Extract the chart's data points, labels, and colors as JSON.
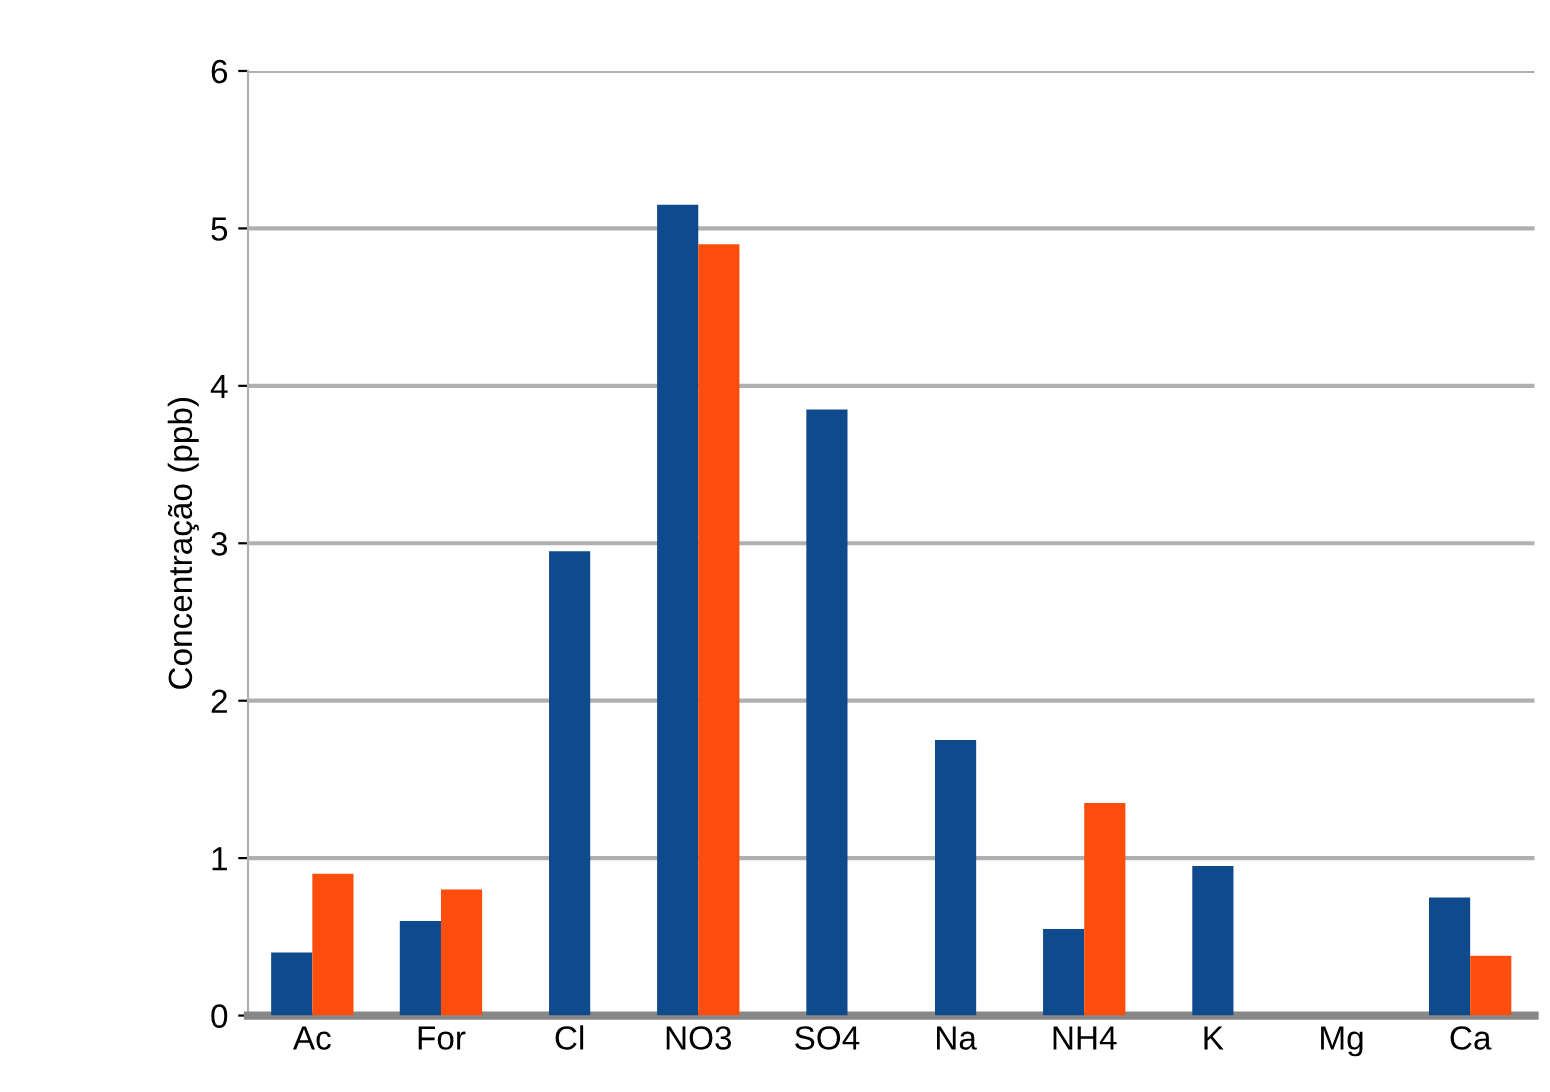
{
  "chart_data": {
    "type": "bar",
    "ylabel": "Concentração (ppb)",
    "categories": [
      "Ac",
      "For",
      "Cl",
      "NO3",
      "SO4",
      "Na",
      "NH4",
      "K",
      "Mg",
      "Ca"
    ],
    "series": [
      {
        "color": "#0e4a8c",
        "values": [
          0.4,
          0.6,
          2.95,
          5.15,
          3.85,
          1.75,
          0.55,
          0.95,
          null,
          0.75
        ]
      },
      {
        "color": "#ff4d0d",
        "values": [
          0.9,
          0.8,
          null,
          4.9,
          null,
          null,
          1.35,
          null,
          null,
          0.38
        ]
      }
    ],
    "ylim": [
      0,
      6
    ],
    "yticks": [
      0,
      1,
      2,
      3,
      4,
      5,
      6
    ],
    "grid": "y"
  }
}
